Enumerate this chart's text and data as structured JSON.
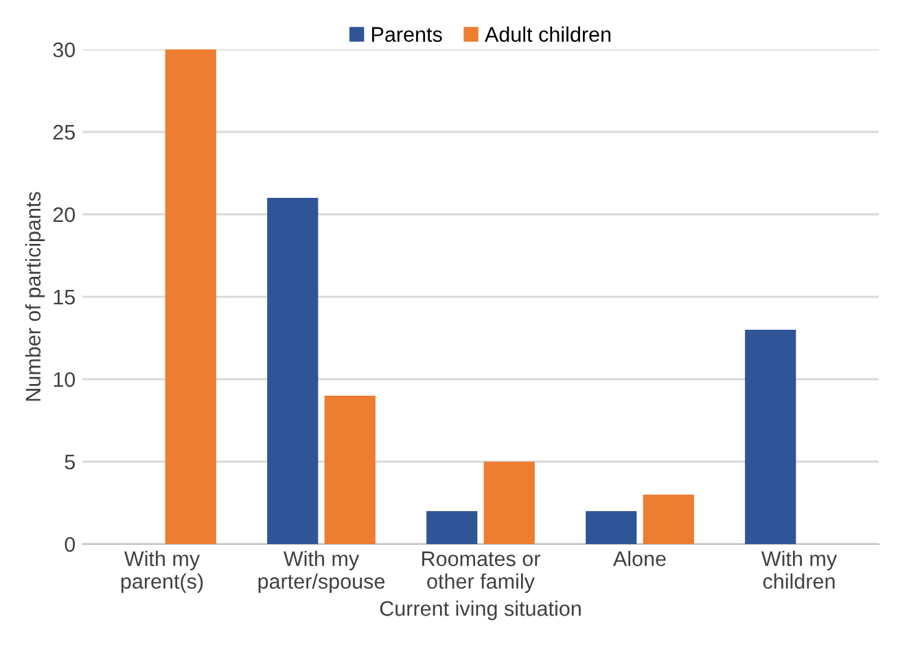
{
  "chart_data": {
    "type": "bar",
    "xlabel": "Current iving situation",
    "ylabel": "Number of participants",
    "categories": [
      "With my\nparent(s)",
      "With my\nparter/spouse",
      "Roomates or\nother family",
      "Alone",
      "With my\nchildren"
    ],
    "series": [
      {
        "name": "Parents",
        "color": "#2f5597",
        "values": [
          0,
          21,
          2,
          2,
          13
        ]
      },
      {
        "name": "Adult children",
        "color": "#ed7d31",
        "values": [
          30,
          9,
          5,
          3,
          0
        ]
      }
    ],
    "ylim": [
      0,
      30
    ],
    "yticks": [
      0,
      5,
      10,
      15,
      20,
      25,
      30
    ],
    "grid": "y",
    "legend": "top"
  }
}
